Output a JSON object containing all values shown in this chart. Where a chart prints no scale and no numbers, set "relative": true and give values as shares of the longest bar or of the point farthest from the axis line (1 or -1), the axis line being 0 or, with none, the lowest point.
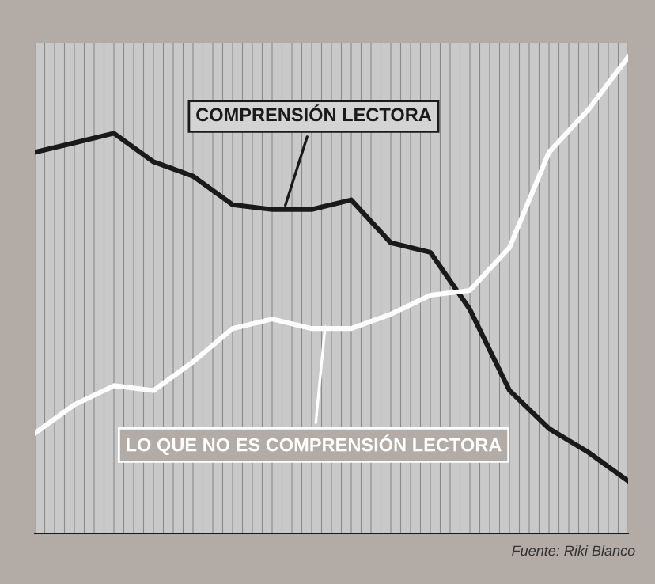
{
  "chart_data": {
    "type": "line",
    "relative": true,
    "grid": true,
    "marker": "none",
    "line_style": "solid",
    "categories": [
      null,
      null,
      null,
      null,
      null,
      null,
      null,
      null,
      null,
      null,
      null,
      null,
      null,
      null,
      null,
      null
    ],
    "series": [
      {
        "color": "#1a1a1a",
        "values": [
          0.8,
          0.82,
          0.84,
          0.78,
          0.75,
          0.69,
          0.68,
          0.68,
          0.7,
          0.61,
          0.59,
          0.47,
          0.3,
          0.22,
          0.17,
          0.11
        ]
      },
      {
        "color": "#ffffff",
        "values": [
          0.21,
          0.27,
          0.31,
          0.3,
          0.36,
          0.43,
          0.45,
          0.43,
          0.43,
          0.46,
          0.5,
          0.51,
          0.6,
          0.8,
          0.89,
          1.0
        ]
      }
    ],
    "annotations": [
      "COMPRENSIÓN LECTORA",
      "LO QUE NO ES COMPRENSIÓN LECTORA",
      "Fuente: Riki Blanco"
    ]
  }
}
